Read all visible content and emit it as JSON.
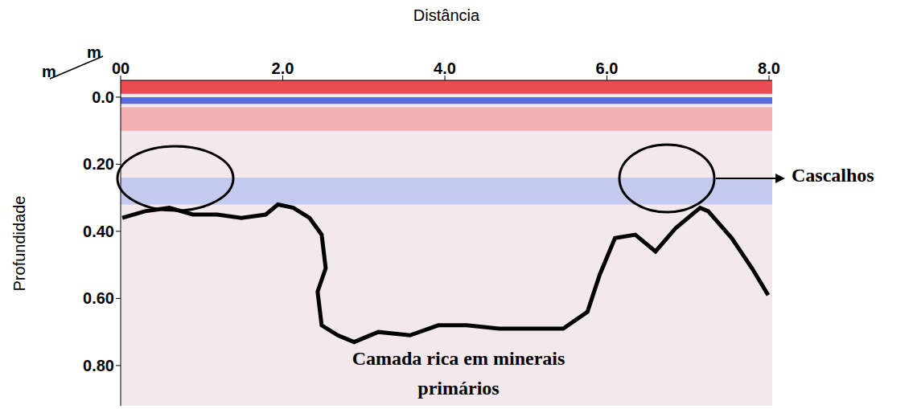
{
  "chart_data": {
    "type": "line",
    "x_label": "Distância",
    "y_label": "Profundidade",
    "x_unit": "m",
    "y_unit": "m",
    "xlim": [
      0,
      8.04
    ],
    "xticks": [
      {
        "value": 0,
        "label": "00"
      },
      {
        "value": 2,
        "label": "2.0"
      },
      {
        "value": 4,
        "label": "4.0"
      },
      {
        "value": 6,
        "label": "6.0"
      },
      {
        "value": 8,
        "label": "8.0"
      }
    ],
    "ylim": [
      -0.05,
      0.92
    ],
    "yticks": [
      {
        "value": 0,
        "label": "0.0"
      },
      {
        "value": 0.2,
        "label": "0.20"
      },
      {
        "value": 0.4,
        "label": "0.40"
      },
      {
        "value": 0.6,
        "label": "0.60"
      },
      {
        "value": 0.8,
        "label": "0.80"
      }
    ],
    "grid": false,
    "series": [
      {
        "color": "#000000",
        "x": [
          0.02,
          0.3,
          0.6,
          0.89,
          1.19,
          1.49,
          1.79,
          1.94,
          2.13,
          2.33,
          2.48,
          2.53,
          2.43,
          2.48,
          2.68,
          2.88,
          3.18,
          3.57,
          3.92,
          4.27,
          4.67,
          5.06,
          5.46,
          5.76,
          5.91,
          6.1,
          6.35,
          6.6,
          6.85,
          7.15,
          7.25,
          7.54,
          7.79,
          7.99
        ],
        "values": [
          0.36,
          0.34,
          0.33,
          0.35,
          0.35,
          0.36,
          0.35,
          0.32,
          0.33,
          0.36,
          0.41,
          0.51,
          0.58,
          0.68,
          0.71,
          0.73,
          0.7,
          0.71,
          0.68,
          0.68,
          0.69,
          0.69,
          0.69,
          0.64,
          0.53,
          0.42,
          0.41,
          0.46,
          0.39,
          0.33,
          0.34,
          0.42,
          0.51,
          0.59
        ]
      }
    ],
    "bands": [
      {
        "from": -0.05,
        "to": -0.01,
        "color": "#e8303a"
      },
      {
        "from": 0.0,
        "to": 0.02,
        "color": "#3b56d9"
      },
      {
        "from": 0.03,
        "to": 0.1,
        "color": "#f2a4a8"
      },
      {
        "from": 0.24,
        "to": 0.32,
        "color": "#bcc5f0"
      }
    ],
    "annotations": [
      "Cascalhos",
      "Camada rica em minerais primários"
    ]
  }
}
